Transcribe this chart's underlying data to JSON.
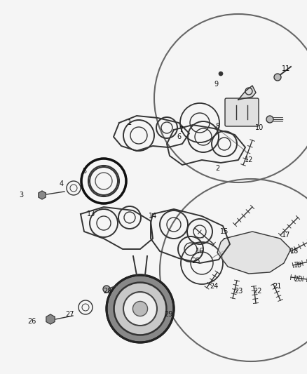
{
  "bg_color": "#f5f5f5",
  "line_color": "#333333",
  "label_color": "#111111",
  "figsize": [
    4.38,
    5.33
  ],
  "dpi": 100
}
